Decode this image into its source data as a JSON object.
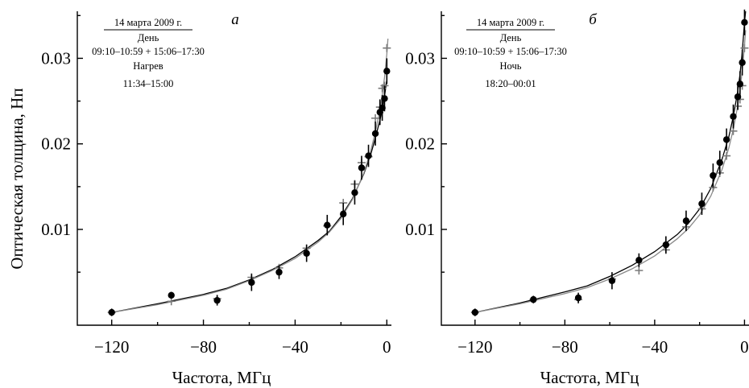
{
  "ylabel": "Оптическая толщина, Нп",
  "chart_data": [
    {
      "type": "scatter",
      "letter": "а",
      "legend_lines": [
        "14 марта 2009 г.",
        "День",
        "09:10–10:59 + 15:06–17:30",
        "Нагрев",
        "11:34–15:00"
      ],
      "xlabel": "Частота, МГц",
      "xlim": [
        -135,
        2
      ],
      "ylim": [
        -0.0012,
        0.0355
      ],
      "xticks": [
        -120,
        -80,
        -40,
        0
      ],
      "xtick_labels": [
        "−120",
        "−80",
        "−40",
        "0"
      ],
      "yticks": [
        0.01,
        0.02,
        0.03
      ],
      "ytick_labels": [
        "0.01",
        "0.02",
        "0.03"
      ],
      "series": [
        {
          "marker": "dot",
          "color": "#000000",
          "points": [
            {
              "x": -120,
              "y": 0.0003,
              "err": 0.0004
            },
            {
              "x": -94,
              "y": 0.0023,
              "err": 0.0004
            },
            {
              "x": -74,
              "y": 0.0017,
              "err": 0.0006
            },
            {
              "x": -59,
              "y": 0.0038,
              "err": 0.001
            },
            {
              "x": -47,
              "y": 0.005,
              "err": 0.0008
            },
            {
              "x": -35,
              "y": 0.0072,
              "err": 0.001
            },
            {
              "x": -26,
              "y": 0.0105,
              "err": 0.0012
            },
            {
              "x": -19,
              "y": 0.0118,
              "err": 0.0013
            },
            {
              "x": -14,
              "y": 0.0143,
              "err": 0.0014
            },
            {
              "x": -11,
              "y": 0.0172,
              "err": 0.0014
            },
            {
              "x": -8,
              "y": 0.0186,
              "err": 0.0013
            },
            {
              "x": -5,
              "y": 0.0212,
              "err": 0.0014
            },
            {
              "x": -3,
              "y": 0.0237,
              "err": 0.0015
            },
            {
              "x": -2,
              "y": 0.0242,
              "err": 0.0015
            },
            {
              "x": -1,
              "y": 0.0253,
              "err": 0.0015
            },
            {
              "x": 0,
              "y": 0.0285,
              "err": 0.0015
            }
          ]
        },
        {
          "marker": "plus",
          "color": "#7a7a7a",
          "points": [
            {
              "x": -120,
              "y": 0.0003
            },
            {
              "x": -94,
              "y": 0.0016
            },
            {
              "x": -74,
              "y": 0.0019
            },
            {
              "x": -59,
              "y": 0.0044
            },
            {
              "x": -47,
              "y": 0.0055
            },
            {
              "x": -35,
              "y": 0.0078
            },
            {
              "x": -26,
              "y": 0.0104
            },
            {
              "x": -19,
              "y": 0.0131
            },
            {
              "x": -14,
              "y": 0.0153
            },
            {
              "x": -11,
              "y": 0.0178
            },
            {
              "x": -8,
              "y": 0.0185
            },
            {
              "x": -5,
              "y": 0.023
            },
            {
              "x": -3,
              "y": 0.0243
            },
            {
              "x": -2,
              "y": 0.0265
            },
            {
              "x": -1,
              "y": 0.0268
            },
            {
              "x": 0,
              "y": 0.0312
            }
          ]
        }
      ],
      "curves": [
        {
          "color": "#000000",
          "points": [
            [
              -120,
              0.0003
            ],
            [
              -100,
              0.0013
            ],
            [
              -80,
              0.0024
            ],
            [
              -70,
              0.0031
            ],
            [
              -60,
              0.0041
            ],
            [
              -50,
              0.0053
            ],
            [
              -40,
              0.0068
            ],
            [
              -30,
              0.0087
            ],
            [
              -25,
              0.0098
            ],
            [
              -20,
              0.0115
            ],
            [
              -15,
              0.0136
            ],
            [
              -10,
              0.0165
            ],
            [
              -7,
              0.0188
            ],
            [
              -5,
              0.0207
            ],
            [
              -3,
              0.0228
            ],
            [
              -2,
              0.024
            ],
            [
              -1,
              0.0256
            ],
            [
              0,
              0.0275
            ]
          ]
        },
        {
          "color": "#8a8a8a",
          "points": [
            [
              -120,
              0.0003
            ],
            [
              -100,
              0.0012
            ],
            [
              -80,
              0.0023
            ],
            [
              -70,
              0.003
            ],
            [
              -60,
              0.004
            ],
            [
              -50,
              0.0052
            ],
            [
              -40,
              0.0066
            ],
            [
              -30,
              0.0085
            ],
            [
              -25,
              0.0097
            ],
            [
              -20,
              0.0113
            ],
            [
              -15,
              0.0135
            ],
            [
              -10,
              0.0166
            ],
            [
              -7,
              0.0192
            ],
            [
              -5,
              0.0214
            ],
            [
              -3,
              0.024
            ],
            [
              -2,
              0.0257
            ],
            [
              -1,
              0.0278
            ],
            [
              0,
              0.0305
            ],
            [
              0.5,
              0.0323
            ]
          ]
        }
      ]
    },
    {
      "type": "scatter",
      "letter": "б",
      "legend_lines": [
        "14 марта 2009 г.",
        "День",
        "09:10–10:59 + 15:06–17:30",
        "Ночь",
        "18:20–00:01"
      ],
      "xlabel": "Частота, МГц",
      "xlim": [
        -135,
        2
      ],
      "ylim": [
        -0.0012,
        0.0355
      ],
      "xticks": [
        -120,
        -80,
        -40,
        0
      ],
      "xtick_labels": [
        "−120",
        "−80",
        "−40",
        "0"
      ],
      "yticks": [
        0.01,
        0.02,
        0.03
      ],
      "ytick_labels": [
        "0.01",
        "0.02",
        "0.03"
      ],
      "series": [
        {
          "marker": "dot",
          "color": "#000000",
          "points": [
            {
              "x": -120,
              "y": 0.0003,
              "err": 0.0004
            },
            {
              "x": -94,
              "y": 0.0018,
              "err": 0.0004
            },
            {
              "x": -74,
              "y": 0.002,
              "err": 0.0006
            },
            {
              "x": -59,
              "y": 0.004,
              "err": 0.001
            },
            {
              "x": -47,
              "y": 0.0064,
              "err": 0.0008
            },
            {
              "x": -35,
              "y": 0.0082,
              "err": 0.001
            },
            {
              "x": -26,
              "y": 0.011,
              "err": 0.0012
            },
            {
              "x": -19,
              "y": 0.013,
              "err": 0.0013
            },
            {
              "x": -14,
              "y": 0.0163,
              "err": 0.0014
            },
            {
              "x": -11,
              "y": 0.0178,
              "err": 0.0014
            },
            {
              "x": -8,
              "y": 0.0205,
              "err": 0.0013
            },
            {
              "x": -5,
              "y": 0.0232,
              "err": 0.0014
            },
            {
              "x": -3,
              "y": 0.0255,
              "err": 0.0015
            },
            {
              "x": -2,
              "y": 0.027,
              "err": 0.0015
            },
            {
              "x": -1,
              "y": 0.0295,
              "err": 0.0015
            },
            {
              "x": 0,
              "y": 0.0342,
              "err": 0.0015
            }
          ]
        },
        {
          "marker": "plus",
          "color": "#7a7a7a",
          "points": [
            {
              "x": -120,
              "y": 0.0003
            },
            {
              "x": -94,
              "y": 0.0018
            },
            {
              "x": -74,
              "y": 0.0018
            },
            {
              "x": -59,
              "y": 0.0042
            },
            {
              "x": -47,
              "y": 0.0052
            },
            {
              "x": -35,
              "y": 0.0076
            },
            {
              "x": -26,
              "y": 0.0103
            },
            {
              "x": -19,
              "y": 0.0124
            },
            {
              "x": -14,
              "y": 0.0149
            },
            {
              "x": -11,
              "y": 0.0166
            },
            {
              "x": -8,
              "y": 0.0186
            },
            {
              "x": -5,
              "y": 0.0215
            },
            {
              "x": -3,
              "y": 0.0244
            },
            {
              "x": -2,
              "y": 0.0252
            },
            {
              "x": -1,
              "y": 0.0268
            },
            {
              "x": 0,
              "y": 0.0312
            }
          ]
        }
      ],
      "curves": [
        {
          "color": "#000000",
          "points": [
            [
              -120,
              0.0003
            ],
            [
              -100,
              0.0014
            ],
            [
              -80,
              0.0027
            ],
            [
              -70,
              0.0034
            ],
            [
              -60,
              0.0045
            ],
            [
              -50,
              0.0058
            ],
            [
              -40,
              0.0074
            ],
            [
              -30,
              0.0094
            ],
            [
              -25,
              0.0107
            ],
            [
              -20,
              0.0124
            ],
            [
              -15,
              0.0148
            ],
            [
              -10,
              0.0182
            ],
            [
              -7,
              0.0208
            ],
            [
              -5,
              0.0232
            ],
            [
              -3,
              0.0262
            ],
            [
              -2,
              0.0281
            ],
            [
              -1,
              0.0307
            ],
            [
              0,
              0.0342
            ],
            [
              0.5,
              0.0355
            ]
          ]
        },
        {
          "color": "#8a8a8a",
          "points": [
            [
              -120,
              0.0003
            ],
            [
              -100,
              0.0013
            ],
            [
              -80,
              0.0025
            ],
            [
              -70,
              0.0032
            ],
            [
              -60,
              0.0042
            ],
            [
              -50,
              0.0054
            ],
            [
              -40,
              0.0069
            ],
            [
              -30,
              0.0089
            ],
            [
              -25,
              0.0101
            ],
            [
              -20,
              0.0117
            ],
            [
              -15,
              0.0139
            ],
            [
              -10,
              0.017
            ],
            [
              -7,
              0.0195
            ],
            [
              -5,
              0.0217
            ],
            [
              -3,
              0.0245
            ],
            [
              -2,
              0.0263
            ],
            [
              -1,
              0.0285
            ],
            [
              0,
              0.0315
            ],
            [
              0.5,
              0.0333
            ]
          ]
        }
      ]
    }
  ]
}
